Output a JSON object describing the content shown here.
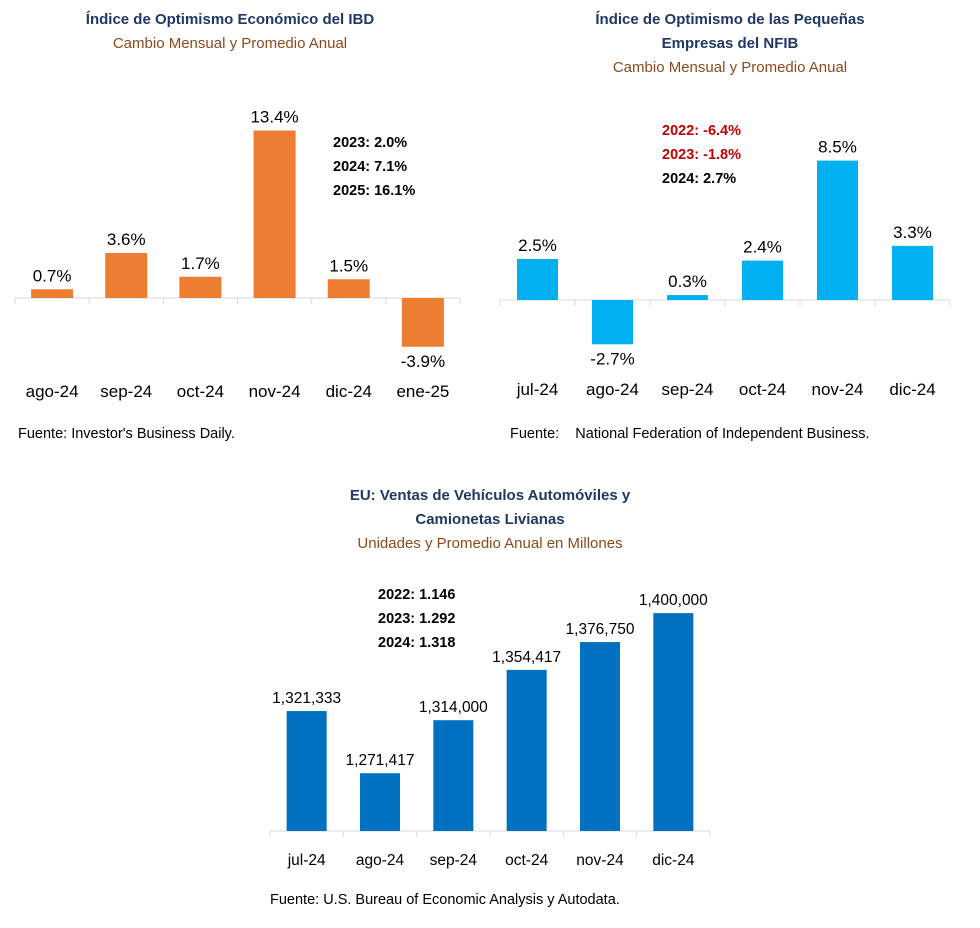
{
  "chart_data": [
    {
      "id": "ibd",
      "type": "bar",
      "title": "Índice de Optimismo Económico del IBD",
      "subtitle": "Cambio Mensual y Promedio Anual",
      "categories": [
        "ago-24",
        "sep-24",
        "oct-24",
        "nov-24",
        "dic-24",
        "ene-25"
      ],
      "values": [
        0.7,
        3.6,
        1.7,
        13.4,
        1.5,
        -3.9
      ],
      "data_labels": [
        "0.7%",
        "3.6%",
        "1.7%",
        "13.4%",
        "1.5%",
        "-3.9%"
      ],
      "annotations": [
        "2023: 2.0%",
        "2024: 7.1%",
        "2025: 16.1%"
      ],
      "annotation_colors": [
        "#000000",
        "#000000",
        "#000000"
      ],
      "bar_color": "#ed7d31",
      "source": "Fuente: Investor's Business Daily."
    },
    {
      "id": "nfib",
      "type": "bar",
      "title": "Índice de Optimismo de las Pequeñas Empresas del NFIB",
      "title_lines": [
        "Índice de Optimismo de las Pequeñas",
        "Empresas del NFIB"
      ],
      "subtitle": "Cambio Mensual y Promedio Anual",
      "categories": [
        "jul-24",
        "ago-24",
        "sep-24",
        "oct-24",
        "nov-24",
        "dic-24"
      ],
      "values": [
        2.5,
        -2.7,
        0.3,
        2.4,
        8.5,
        3.3
      ],
      "data_labels": [
        "2.5%",
        "-2.7%",
        "0.3%",
        "2.4%",
        "8.5%",
        "3.3%"
      ],
      "annotations": [
        "2022: -6.4%",
        "2023: -1.8%",
        "2024: 2.7%"
      ],
      "annotation_colors": [
        "#c00000",
        "#c00000",
        "#000000"
      ],
      "bar_color": "#00b0f0",
      "source": "Fuente:    National Federation of Independent Business."
    },
    {
      "id": "autos",
      "type": "bar",
      "title": "EU: Ventas de Vehículos Automóviles y Camionetas Livianas",
      "title_lines": [
        "EU: Ventas de Vehículos Automóviles y",
        "Camionetas Livianas"
      ],
      "subtitle": "Unidades y Promedio Anual en Millones",
      "categories": [
        "jul-24",
        "ago-24",
        "sep-24",
        "oct-24",
        "nov-24",
        "dic-24"
      ],
      "values": [
        1321333,
        1271417,
        1314000,
        1354417,
        1376750,
        1400000
      ],
      "data_labels": [
        "1,321,333",
        "1,271,417",
        "1,314,000",
        "1,354,417",
        "1,376,750",
        "1,400,000"
      ],
      "annotations": [
        "2022: 1.146",
        "2023: 1.292",
        "2024: 1.318"
      ],
      "annotation_colors": [
        "#000000",
        "#000000",
        "#000000"
      ],
      "bar_color": "#0070c0",
      "source": "Fuente: U.S. Bureau of Economic Analysis y Autodata."
    }
  ]
}
